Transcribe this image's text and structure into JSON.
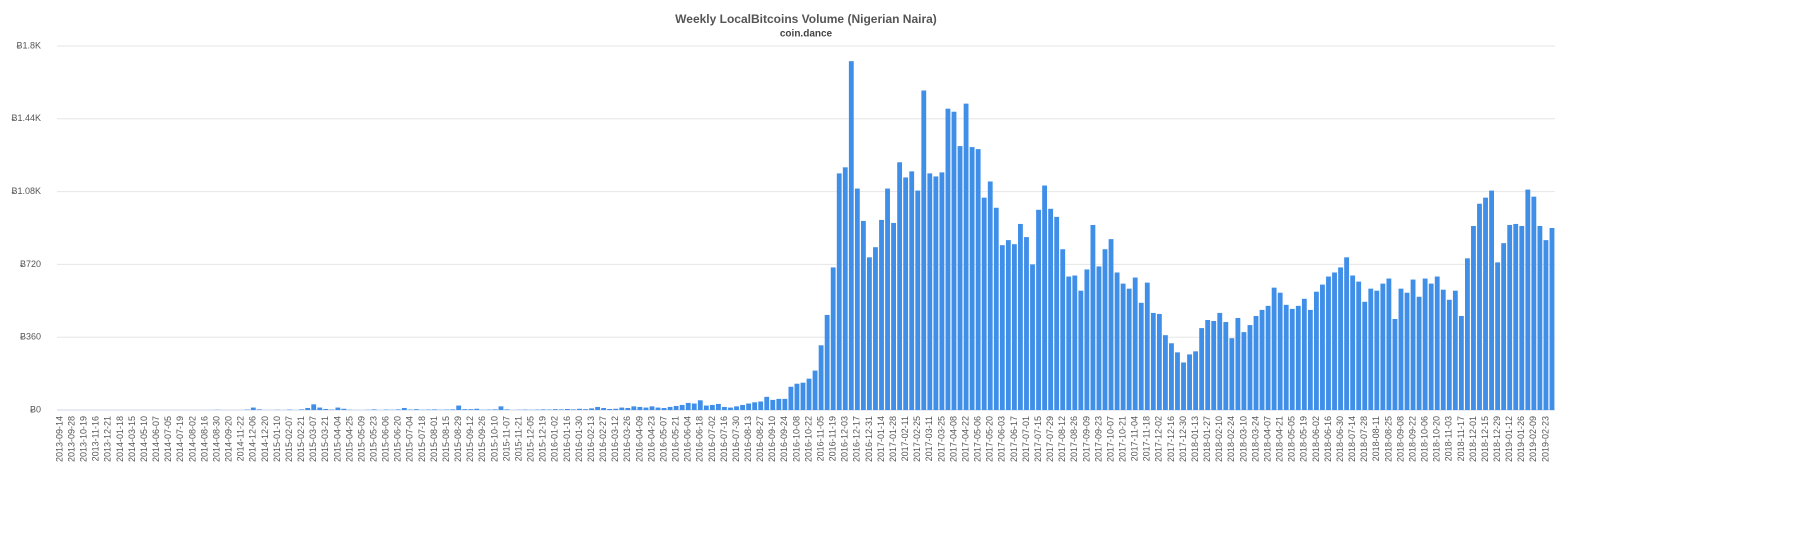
{
  "chart_data": {
    "type": "bar",
    "title": "Weekly LocalBitcoins Volume (Nigerian Naira)",
    "subtitle": "coin.dance",
    "color": "#3f8ee8",
    "grid": true,
    "ylim": [
      0,
      1800
    ],
    "yticks": [
      {
        "value": 0,
        "label": "Ƀ0"
      },
      {
        "value": 360,
        "label": "Ƀ360"
      },
      {
        "value": 720,
        "label": "Ƀ720"
      },
      {
        "value": 1080,
        "label": "Ƀ1.08K"
      },
      {
        "value": 1440,
        "label": "Ƀ1.44K"
      },
      {
        "value": 1800,
        "label": "Ƀ1.8K"
      }
    ],
    "categories": [
      "2013-09-14",
      null,
      "2013-09-28",
      null,
      "2013-10-19",
      null,
      "2013-11-16",
      null,
      "2013-12-21",
      null,
      "2014-01-18",
      null,
      "2014-03-15",
      null,
      "2014-05-10",
      null,
      "2014-06-07",
      null,
      "2014-07-05",
      null,
      "2014-07-19",
      null,
      "2014-08-02",
      null,
      "2014-08-16",
      null,
      "2014-08-30",
      null,
      "2014-09-20",
      null,
      "2014-11-22",
      null,
      "2014-12-06",
      null,
      "2014-12-20",
      null,
      "2015-01-10",
      null,
      "2015-02-07",
      null,
      "2015-02-21",
      null,
      "2015-03-07",
      null,
      "2015-03-21",
      null,
      "2015-04-04",
      null,
      "2015-04-25",
      null,
      "2015-05-09",
      null,
      "2015-05-23",
      null,
      "2015-06-06",
      null,
      "2015-06-20",
      null,
      "2015-07-04",
      null,
      "2015-07-18",
      null,
      "2015-08-01",
      null,
      "2015-08-15",
      null,
      "2015-08-29",
      null,
      "2015-09-12",
      null,
      "2015-09-26",
      null,
      "2015-10-10",
      null,
      "2015-11-07",
      null,
      "2015-11-21",
      null,
      "2015-12-05",
      null,
      "2015-12-19",
      null,
      "2016-01-02",
      null,
      "2016-01-16",
      null,
      "2016-01-30",
      null,
      "2016-02-13",
      null,
      "2016-02-27",
      null,
      "2016-03-12",
      null,
      "2016-03-26",
      null,
      "2016-04-09",
      null,
      "2016-04-23",
      null,
      "2016-05-07",
      null,
      "2016-05-21",
      null,
      "2016-06-04",
      null,
      "2016-06-18",
      null,
      "2016-07-02",
      null,
      "2016-07-16",
      null,
      "2016-07-30",
      null,
      "2016-08-13",
      null,
      "2016-08-27",
      null,
      "2016-09-10",
      null,
      "2016-09-24",
      null,
      "2016-10-08",
      null,
      "2016-10-22",
      null,
      "2016-11-05",
      null,
      "2016-11-19",
      null,
      "2016-12-03",
      null,
      "2016-12-17",
      null,
      "2016-12-31",
      null,
      "2017-01-14",
      null,
      "2017-01-28",
      null,
      "2017-02-11",
      null,
      "2017-02-25",
      null,
      "2017-03-11",
      null,
      "2017-03-25",
      null,
      "2017-04-08",
      null,
      "2017-04-22",
      null,
      "2017-05-06",
      null,
      "2017-05-20",
      null,
      "2017-06-03",
      null,
      "2017-06-17",
      null,
      "2017-07-01",
      null,
      "2017-07-15",
      null,
      "2017-07-29",
      null,
      "2017-08-12",
      null,
      "2017-08-26",
      null,
      "2017-09-09",
      null,
      "2017-09-23",
      null,
      "2017-10-07",
      null,
      "2017-10-21",
      null,
      "2017-11-04",
      null,
      "2017-11-18",
      null,
      "2017-12-02",
      null,
      "2017-12-16",
      null,
      "2017-12-30",
      null,
      "2018-01-13",
      null,
      "2018-01-27",
      null,
      "2018-02-10",
      null,
      "2018-02-24",
      null,
      "2018-03-10",
      null,
      "2018-03-24",
      null,
      "2018-04-07",
      null,
      "2018-04-21",
      null,
      "2018-05-05",
      null,
      "2018-05-19",
      null,
      "2018-06-02",
      null,
      "2018-06-16",
      null,
      "2018-06-30",
      null,
      "2018-07-14",
      null,
      "2018-07-28",
      null,
      "2018-08-11",
      null,
      "2018-08-25",
      null,
      "2018-09-08",
      null,
      "2018-09-22",
      null,
      "2018-10-06",
      null,
      "2018-10-20",
      null,
      "2018-11-03",
      null,
      "2018-11-17",
      null,
      "2018-12-01",
      null,
      "2018-12-15",
      null,
      "2018-12-29",
      null,
      "2019-01-12",
      null,
      "2019-01-26",
      null,
      "2019-02-09",
      null,
      "2019-02-23",
      null
    ],
    "values": [
      0,
      0,
      0,
      0,
      0,
      0,
      0,
      0,
      0,
      0,
      0,
      0,
      0,
      0,
      0,
      0,
      0,
      0,
      0,
      0,
      0,
      0,
      0,
      0,
      0,
      0,
      1,
      0,
      0,
      0,
      0,
      2,
      12,
      3,
      0,
      0,
      1,
      0,
      2,
      0,
      3,
      10,
      28,
      12,
      5,
      2,
      12,
      6,
      1,
      0,
      0,
      1,
      3,
      0,
      2,
      1,
      3,
      10,
      2,
      4,
      1,
      2,
      3,
      1,
      2,
      3,
      22,
      4,
      4,
      6,
      1,
      2,
      3,
      18,
      3,
      0,
      1,
      2,
      1,
      2,
      3,
      2,
      4,
      3,
      5,
      3,
      6,
      4,
      8,
      15,
      10,
      5,
      6,
      12,
      10,
      18,
      15,
      12,
      18,
      12,
      10,
      15,
      20,
      25,
      35,
      32,
      48,
      22,
      25,
      30,
      15,
      12,
      18,
      25,
      32,
      38,
      42,
      65,
      50,
      55,
      55,
      115,
      130,
      135,
      155,
      195,
      320,
      470,
      705,
      1170,
      1200,
      1725,
      1095,
      935,
      755,
      805,
      940,
      1095,
      925,
      1225,
      1150,
      1180,
      1085,
      1580,
      1170,
      1155,
      1175,
      1490,
      1475,
      1305,
      1515,
      1300,
      1290,
      1050,
      1130,
      1000,
      815,
      840,
      820,
      920,
      855,
      720,
      990,
      1110,
      995,
      955,
      795,
      660,
      665,
      590,
      695,
      915,
      710,
      795,
      845,
      680,
      625,
      600,
      655,
      530,
      630,
      480,
      475,
      370,
      330,
      285,
      235,
      275,
      290,
      405,
      445,
      440,
      480,
      435,
      355,
      455,
      385,
      420,
      465,
      495,
      515,
      605,
      580,
      520,
      500,
      515,
      550,
      495,
      585,
      620,
      660,
      680,
      705,
      755,
      665,
      635,
      535,
      600,
      590,
      625,
      650,
      450,
      600,
      580,
      645,
      560,
      650,
      625,
      660,
      595,
      545,
      590,
      465,
      750,
      910,
      1020,
      1050,
      1085,
      730,
      825,
      915,
      920,
      910,
      1090,
      1055,
      910,
      840,
      900
    ]
  }
}
